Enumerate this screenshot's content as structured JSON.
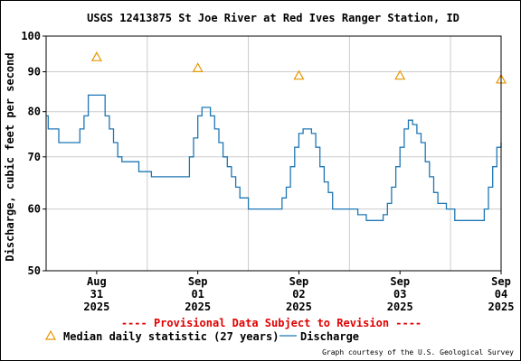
{
  "chart_data": {
    "type": "line",
    "title": "USGS 12413875 St Joe River at Red Ives Ranger Station, ID",
    "ylabel": "Discharge, cubic feet per second",
    "y_scale": "log",
    "ylim": [
      50,
      100
    ],
    "y_ticks": [
      {
        "value": 50,
        "label": "50"
      },
      {
        "value": 60,
        "label": "60"
      },
      {
        "value": 70,
        "label": "70"
      },
      {
        "value": 80,
        "label": "80"
      },
      {
        "value": 90,
        "label": "90"
      },
      {
        "value": 100,
        "label": "100"
      }
    ],
    "xlim": [
      "2025-08-31T00:00",
      "2025-09-04T12:00"
    ],
    "x_ticks": [
      {
        "value": "2025-08-31T12:00",
        "lines": [
          "Aug",
          "31",
          "2025"
        ]
      },
      {
        "value": "2025-09-01T12:00",
        "lines": [
          "Sep",
          "01",
          "2025"
        ]
      },
      {
        "value": "2025-09-02T12:00",
        "lines": [
          "Sep",
          "02",
          "2025"
        ]
      },
      {
        "value": "2025-09-03T12:00",
        "lines": [
          "Sep",
          "03",
          "2025"
        ]
      },
      {
        "value": "2025-09-04T12:00",
        "lines": [
          "Sep",
          "04",
          "2025"
        ]
      }
    ],
    "x_gridlines": [
      "2025-09-01T00:00",
      "2025-09-02T00:00",
      "2025-09-03T00:00",
      "2025-09-04T00:00"
    ],
    "grid": true,
    "series": [
      {
        "name": "Discharge",
        "color": "#1f77b4",
        "x": [
          "2025-08-31T00:00",
          "2025-08-31T00:30",
          "2025-08-31T01:00",
          "2025-08-31T02:00",
          "2025-08-31T03:00",
          "2025-08-31T04:00",
          "2025-08-31T05:00",
          "2025-08-31T06:00",
          "2025-08-31T07:00",
          "2025-08-31T08:00",
          "2025-08-31T09:00",
          "2025-08-31T10:00",
          "2025-08-31T11:00",
          "2025-08-31T12:00",
          "2025-08-31T13:00",
          "2025-08-31T14:00",
          "2025-08-31T15:00",
          "2025-08-31T16:00",
          "2025-08-31T17:00",
          "2025-08-31T18:00",
          "2025-08-31T19:00",
          "2025-08-31T20:00",
          "2025-08-31T21:00",
          "2025-08-31T22:00",
          "2025-08-31T23:00",
          "2025-09-01T00:00",
          "2025-09-01T01:00",
          "2025-09-01T02:00",
          "2025-09-01T06:00",
          "2025-09-01T09:00",
          "2025-09-01T10:00",
          "2025-09-01T11:00",
          "2025-09-01T12:00",
          "2025-09-01T13:00",
          "2025-09-01T14:00",
          "2025-09-01T15:00",
          "2025-09-01T16:00",
          "2025-09-01T17:00",
          "2025-09-01T18:00",
          "2025-09-01T19:00",
          "2025-09-01T20:00",
          "2025-09-01T21:00",
          "2025-09-01T22:00",
          "2025-09-01T23:00",
          "2025-09-02T00:00",
          "2025-09-02T01:00",
          "2025-09-02T03:00",
          "2025-09-02T06:00",
          "2025-09-02T08:00",
          "2025-09-02T09:00",
          "2025-09-02T10:00",
          "2025-09-02T11:00",
          "2025-09-02T12:00",
          "2025-09-02T13:00",
          "2025-09-02T14:00",
          "2025-09-02T15:00",
          "2025-09-02T16:00",
          "2025-09-02T17:00",
          "2025-09-02T18:00",
          "2025-09-02T19:00",
          "2025-09-02T20:00",
          "2025-09-02T22:00",
          "2025-09-03T00:00",
          "2025-09-03T02:00",
          "2025-09-03T04:00",
          "2025-09-03T06:00",
          "2025-09-03T07:00",
          "2025-09-03T08:00",
          "2025-09-03T09:00",
          "2025-09-03T10:00",
          "2025-09-03T11:00",
          "2025-09-03T12:00",
          "2025-09-03T13:00",
          "2025-09-03T14:00",
          "2025-09-03T15:00",
          "2025-09-03T16:00",
          "2025-09-03T17:00",
          "2025-09-03T18:00",
          "2025-09-03T19:00",
          "2025-09-03T20:00",
          "2025-09-03T21:00",
          "2025-09-03T23:00",
          "2025-09-04T01:00",
          "2025-09-04T03:00",
          "2025-09-04T05:00",
          "2025-09-04T06:00",
          "2025-09-04T07:00",
          "2025-09-04T08:00",
          "2025-09-04T09:00",
          "2025-09-04T10:00",
          "2025-09-04T11:00",
          "2025-09-04T12:00"
        ],
        "y": [
          79,
          76,
          76,
          76,
          73,
          73,
          73,
          73,
          73,
          76,
          79,
          84,
          84,
          84,
          84,
          79,
          76,
          73,
          70,
          69,
          69,
          69,
          69,
          67,
          67,
          67,
          66,
          66,
          66,
          66,
          70,
          74,
          79,
          81,
          81,
          79,
          76,
          73,
          70,
          68,
          66,
          64,
          62,
          62,
          60,
          60,
          60,
          60,
          62,
          64,
          68,
          72,
          75,
          76,
          76,
          75,
          72,
          68,
          65,
          63,
          60,
          60,
          60,
          59,
          58,
          58,
          58,
          59,
          61,
          64,
          68,
          72,
          76,
          78,
          77,
          75,
          73,
          69,
          66,
          63,
          61,
          60,
          58,
          58,
          58,
          58,
          58,
          60,
          64,
          68,
          72,
          73
        ]
      },
      {
        "name": "Median daily statistic (27 years)",
        "color": "#e69500",
        "marker": "triangle",
        "x": [
          "2025-08-31T12:00",
          "2025-09-01T12:00",
          "2025-09-02T12:00",
          "2025-09-03T12:00",
          "2025-09-04T12:00"
        ],
        "y": [
          94,
          91,
          89,
          89,
          88
        ]
      }
    ],
    "legend": {
      "placement": "bottom",
      "entries": [
        "Median daily statistic (27 years)",
        "Discharge"
      ]
    }
  },
  "notice": "---- Provisional Data Subject to Revision ----",
  "credit": "Graph courtesy of the U.S. Geological Survey",
  "colors": {
    "notice": "#e00000",
    "grid": "#cccccc",
    "axis": "#000000"
  }
}
